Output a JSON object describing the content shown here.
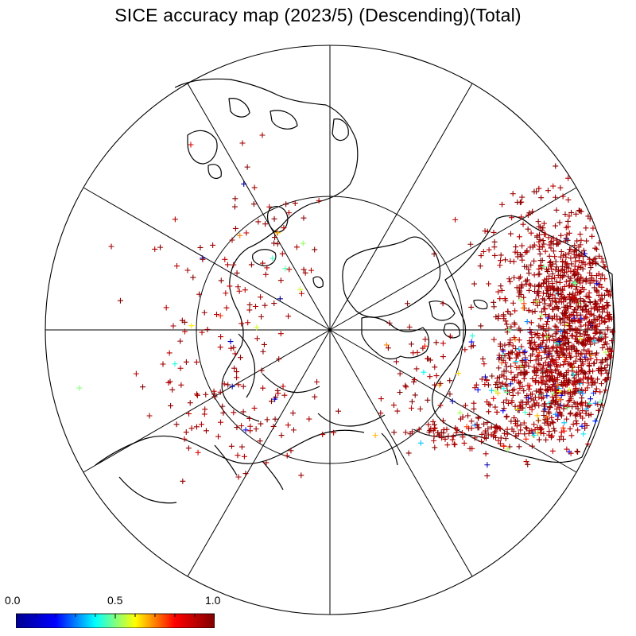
{
  "title": "SICE accuracy map (2023/5) (Descending)(Total)",
  "projection": "north-polar-stereographic",
  "graticule": {
    "meridian_spokes": 12,
    "inner_circle": true
  },
  "colors": {
    "land_outline": "#000000",
    "graticule": "#000000",
    "marker_high": "#8b0000"
  },
  "colorbar": {
    "min_label": "0.0",
    "mid_label": "0.5",
    "max_label": "1.0",
    "min": 0.0,
    "max": 1.0,
    "colormap": "jet",
    "stops": [
      "#00008f",
      "#0000ff",
      "#00ffff",
      "#ffff00",
      "#ff0000",
      "#800000"
    ]
  },
  "accuracy_points": {
    "marker": "plus",
    "value_range": [
      0.0,
      1.0
    ],
    "dominant_value": 0.95
  }
}
